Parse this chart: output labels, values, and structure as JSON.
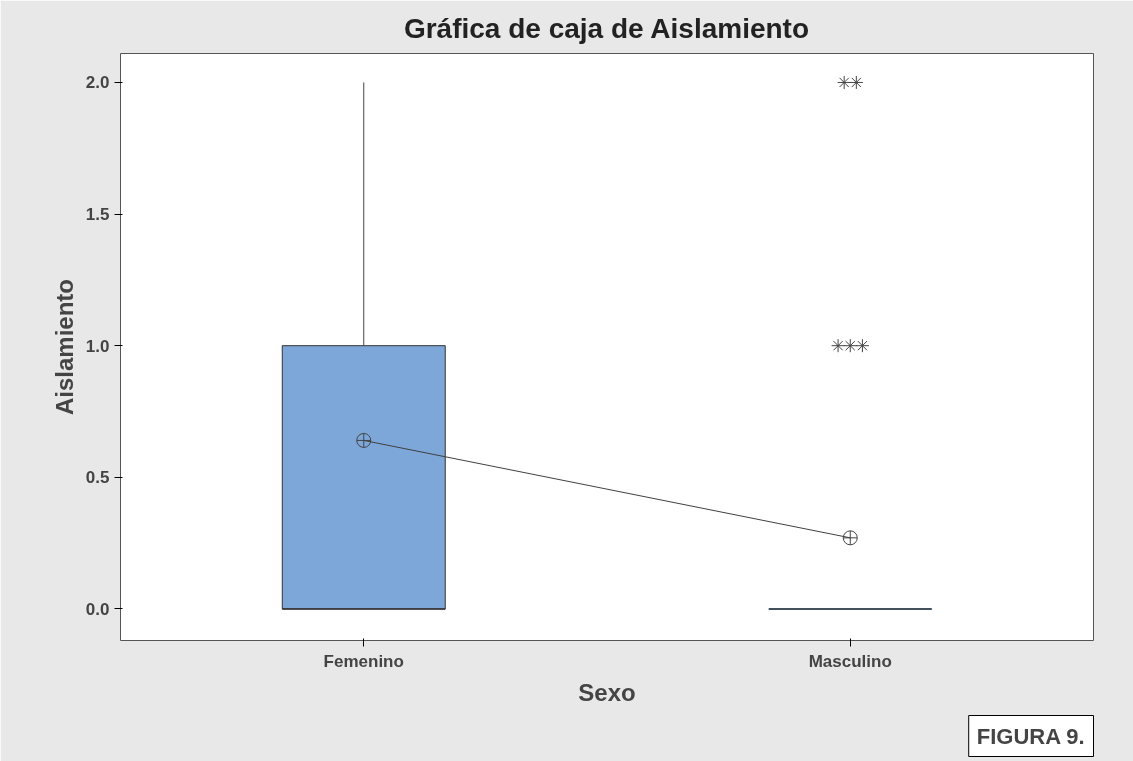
{
  "chart_data": {
    "type": "box",
    "title": "Gráfica de caja de Aislamiento",
    "xlabel": "Sexo",
    "ylabel": "Aislamiento",
    "categories": [
      "Femenino",
      "Masculino"
    ],
    "boxes": [
      {
        "low": 0,
        "q1": 0,
        "median": 0,
        "q3": 1,
        "high": 2,
        "mean": 0.64
      },
      {
        "low": 0,
        "q1": 0,
        "median": 0,
        "q3": 0,
        "high": 0,
        "mean": 0.27,
        "outliers": [
          1,
          1,
          1,
          2,
          2
        ]
      }
    ],
    "series": [
      {
        "type": "line",
        "values": [
          0.64,
          0.27
        ],
        "color": "#404040"
      }
    ],
    "color": "#7da7d9",
    "ylim": [
      -0.12,
      2.11
    ],
    "yticks": [
      {
        "value": 0,
        "label": "0.0"
      },
      {
        "value": 0.5,
        "label": "0.5"
      },
      {
        "value": 1,
        "label": "1.0"
      },
      {
        "value": 1.5,
        "label": "1.5"
      },
      {
        "value": 2,
        "label": "2.0"
      }
    ],
    "grid": false,
    "annotations": [
      "FIGURA 9."
    ]
  }
}
